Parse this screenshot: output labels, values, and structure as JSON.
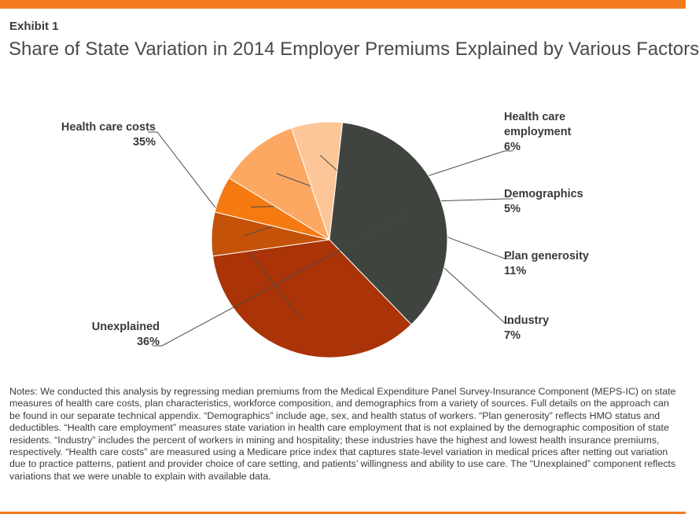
{
  "header": {
    "exhibit": "Exhibit 1",
    "title": "Share of State Variation in 2014 Employer Premiums Explained by Various Factors"
  },
  "chart_data": {
    "type": "pie",
    "title": "Share of State Variation in 2014 Employer Premiums Explained by Various Factors",
    "slices": [
      {
        "label": "Health care costs",
        "lines": [
          "Health care costs"
        ],
        "value_label": "35%",
        "value": 35,
        "color": "#aa3307"
      },
      {
        "label": "Health care employment",
        "lines": [
          "Health care",
          "employment"
        ],
        "value_label": "6%",
        "value": 6,
        "color": "#c45208"
      },
      {
        "label": "Demographics",
        "lines": [
          "Demographics"
        ],
        "value_label": "5%",
        "value": 5,
        "color": "#f57a12"
      },
      {
        "label": "Plan generosity",
        "lines": [
          "Plan generosity"
        ],
        "value_label": "11%",
        "value": 11,
        "color": "#fca863"
      },
      {
        "label": "Industry",
        "lines": [
          "Industry"
        ],
        "value_label": "7%",
        "value": 7,
        "color": "#fdc698"
      },
      {
        "label": "Unexplained",
        "lines": [
          "Unexplained"
        ],
        "value_label": "36%",
        "value": 36,
        "color": "#3f443f"
      }
    ]
  },
  "notes": "Notes: We conducted this analysis by regressing median premiums from the Medical Expenditure Panel Survey-Insurance Component (MEPS-IC) on state measures of health care costs, plan characteristics, workforce composition, and demographics from a variety of sources. Full details on the approach can be found in our separate technical appendix. “Demographics” include age, sex, and health status of workers. “Plan generosity” reflects HMO status and deductibles. “Health care employment” measures state variation in health care employment that is not explained by the demographic composition of state residents. “Industry” includes the percent of workers in mining and hospitality; these industries have the highest and lowest health insurance premiums, respectively. “Health care costs” are measured using a Medicare price index that captures state-level variation in medical prices after netting out variation due to practice patterns, patient and provider choice of care setting, and patients’ willingness and ability to use care. The “Unexplained” component reflects variations that we were unable to explain with available data."
}
